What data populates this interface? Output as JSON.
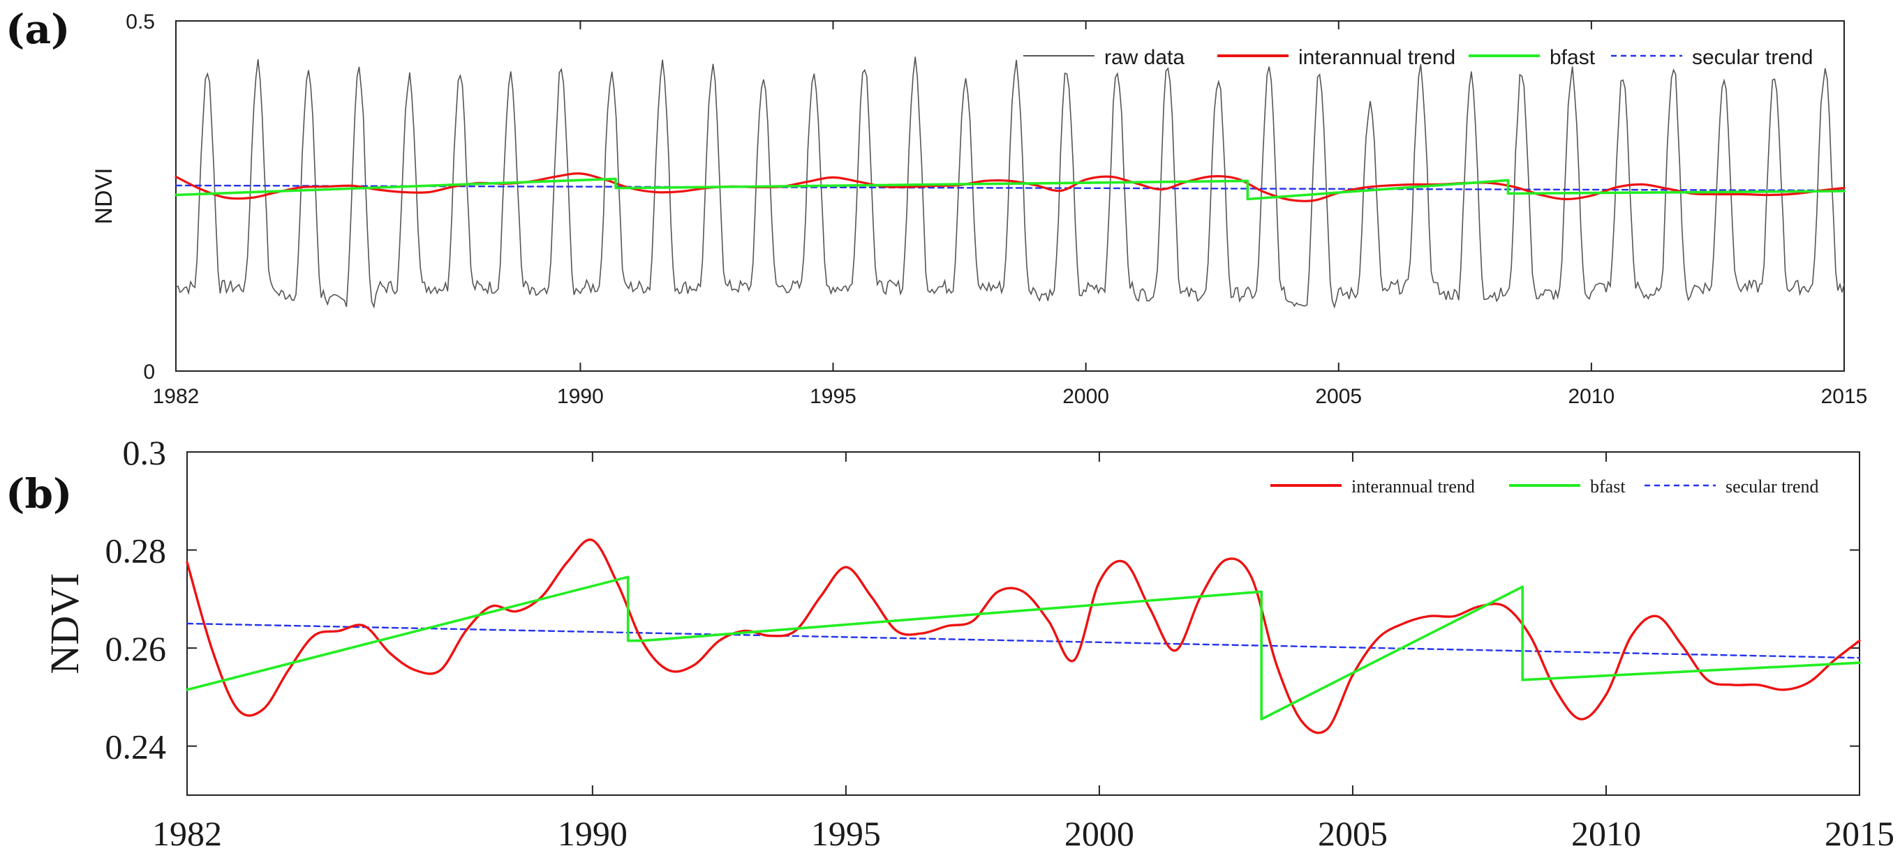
{
  "colors": {
    "raw": "#555555",
    "interannual": "#ee1111",
    "bfast": "#22ee22",
    "secular": "#2233ee",
    "axis": "#222222"
  },
  "chart_data": [
    {
      "panel_label": "(a)",
      "type": "line",
      "title": "",
      "xlabel": "",
      "ylabel": "NDVI",
      "xlim": [
        1982,
        2015
      ],
      "ylim": [
        0,
        0.5
      ],
      "x_ticks": [
        1982,
        1990,
        1995,
        2000,
        2005,
        2010,
        2015
      ],
      "x_tick_labels": [
        "1982",
        "1990",
        "1995",
        "2000",
        "2005",
        "2010",
        "2015"
      ],
      "y_ticks": [
        0,
        0.5
      ],
      "y_tick_labels": [
        "0",
        "0.5"
      ],
      "legend_position": "top-right",
      "legend": [
        "raw data",
        "interannual trend",
        "bfast",
        "secular trend"
      ],
      "raw_data": {
        "name": "raw data",
        "description": "seasonal NDVI, one cycle per year",
        "seasonal_peaks": [
          0.43,
          0.44,
          0.43,
          0.43,
          0.42,
          0.43,
          0.42,
          0.43,
          0.43,
          0.44,
          0.43,
          0.42,
          0.43,
          0.44,
          0.44,
          0.42,
          0.44,
          0.43,
          0.43,
          0.44,
          0.42,
          0.43,
          0.43,
          0.38,
          0.43,
          0.42,
          0.43,
          0.43,
          0.42,
          0.44,
          0.42,
          0.42,
          0.43
        ],
        "seasonal_troughs": [
          0.12,
          0.12,
          0.11,
          0.1,
          0.12,
          0.12,
          0.12,
          0.11,
          0.12,
          0.12,
          0.12,
          0.12,
          0.12,
          0.12,
          0.12,
          0.12,
          0.12,
          0.11,
          0.12,
          0.11,
          0.11,
          0.11,
          0.1,
          0.11,
          0.12,
          0.11,
          0.11,
          0.11,
          0.12,
          0.11,
          0.12,
          0.12,
          0.12
        ]
      },
      "series": [
        {
          "name": "interannual trend",
          "x": [
            1982.0,
            1982.5,
            1983.0,
            1983.5,
            1984.0,
            1984.5,
            1985.0,
            1985.5,
            1986.0,
            1986.5,
            1987.0,
            1987.5,
            1988.0,
            1988.5,
            1989.0,
            1989.5,
            1990.0,
            1990.5,
            1991.0,
            1991.5,
            1992.0,
            1992.5,
            1993.0,
            1993.5,
            1994.0,
            1994.5,
            1995.0,
            1995.5,
            1996.0,
            1996.5,
            1997.0,
            1997.5,
            1998.0,
            1998.5,
            1999.0,
            1999.5,
            2000.0,
            2000.5,
            2001.0,
            2001.5,
            2002.0,
            2002.5,
            2003.0,
            2003.5,
            2004.0,
            2004.5,
            2005.0,
            2005.5,
            2006.0,
            2006.5,
            2007.0,
            2007.5,
            2008.0,
            2008.5,
            2009.0,
            2009.5,
            2010.0,
            2010.5,
            2011.0,
            2011.5,
            2012.0,
            2012.5,
            2013.0,
            2013.5,
            2014.0,
            2014.5,
            2015.0
          ],
          "values": [
            0.2775,
            0.2595,
            0.2475,
            0.2475,
            0.2555,
            0.2625,
            0.2635,
            0.2645,
            0.259,
            0.2555,
            0.2555,
            0.2635,
            0.2685,
            0.2675,
            0.2705,
            0.2775,
            0.282,
            0.273,
            0.261,
            0.2555,
            0.2565,
            0.2615,
            0.2635,
            0.2625,
            0.2635,
            0.2705,
            0.2765,
            0.2705,
            0.2635,
            0.263,
            0.2645,
            0.2655,
            0.2715,
            0.2715,
            0.2655,
            0.2575,
            0.2735,
            0.2775,
            0.268,
            0.2595,
            0.2705,
            0.278,
            0.2745,
            0.2565,
            0.245,
            0.2435,
            0.2545,
            0.262,
            0.265,
            0.2665,
            0.2665,
            0.2685,
            0.2685,
            0.2625,
            0.2515,
            0.2455,
            0.2505,
            0.2625,
            0.2665,
            0.2605,
            0.2535,
            0.2525,
            0.2525,
            0.2515,
            0.253,
            0.2575,
            0.2615
          ]
        },
        {
          "name": "bfast",
          "x": [
            1982.0,
            1990.7,
            1990.7,
            1991.0,
            2003.2,
            2003.2,
            2008.35,
            2008.35,
            2015.0
          ],
          "values": [
            0.2515,
            0.2745,
            0.2615,
            0.2615,
            0.2715,
            0.2455,
            0.2725,
            0.2535,
            0.257
          ]
        },
        {
          "name": "secular trend",
          "x": [
            1982,
            2015
          ],
          "values": [
            0.265,
            0.258
          ]
        }
      ]
    },
    {
      "panel_label": "(b)",
      "type": "line",
      "title": "",
      "xlabel": "",
      "ylabel": "NDVI",
      "xlim": [
        1982,
        2015
      ],
      "ylim": [
        0.23,
        0.3
      ],
      "x_ticks": [
        1982,
        1990,
        1995,
        2000,
        2005,
        2010,
        2015
      ],
      "x_tick_labels": [
        "1982",
        "1990",
        "1995",
        "2000",
        "2005",
        "2010",
        "2015"
      ],
      "y_ticks": [
        0.24,
        0.26,
        0.28,
        0.3
      ],
      "y_tick_labels": [
        "0.24",
        "0.26",
        "0.28",
        "0.3"
      ],
      "legend_position": "top-right",
      "legend": [
        "interannual trend",
        "bfast",
        "secular trend"
      ],
      "series": [
        {
          "name": "interannual trend",
          "x": [
            1982.0,
            1982.5,
            1983.0,
            1983.5,
            1984.0,
            1984.5,
            1985.0,
            1985.5,
            1986.0,
            1986.5,
            1987.0,
            1987.5,
            1988.0,
            1988.5,
            1989.0,
            1989.5,
            1990.0,
            1990.5,
            1991.0,
            1991.5,
            1992.0,
            1992.5,
            1993.0,
            1993.5,
            1994.0,
            1994.5,
            1995.0,
            1995.5,
            1996.0,
            1996.5,
            1997.0,
            1997.5,
            1998.0,
            1998.5,
            1999.0,
            1999.5,
            2000.0,
            2000.5,
            2001.0,
            2001.5,
            2002.0,
            2002.5,
            2003.0,
            2003.5,
            2004.0,
            2004.5,
            2005.0,
            2005.5,
            2006.0,
            2006.5,
            2007.0,
            2007.5,
            2008.0,
            2008.5,
            2009.0,
            2009.5,
            2010.0,
            2010.5,
            2011.0,
            2011.5,
            2012.0,
            2012.5,
            2013.0,
            2013.5,
            2014.0,
            2014.5,
            2015.0
          ],
          "values": [
            0.2775,
            0.2595,
            0.2475,
            0.2475,
            0.2555,
            0.2625,
            0.2635,
            0.2645,
            0.259,
            0.2555,
            0.2555,
            0.2635,
            0.2685,
            0.2675,
            0.2705,
            0.2775,
            0.282,
            0.273,
            0.261,
            0.2555,
            0.2565,
            0.2615,
            0.2635,
            0.2625,
            0.2635,
            0.2705,
            0.2765,
            0.2705,
            0.2635,
            0.263,
            0.2645,
            0.2655,
            0.2715,
            0.2715,
            0.2655,
            0.2575,
            0.2735,
            0.2775,
            0.268,
            0.2595,
            0.2705,
            0.278,
            0.2745,
            0.2565,
            0.245,
            0.2435,
            0.2545,
            0.262,
            0.265,
            0.2665,
            0.2665,
            0.2685,
            0.2685,
            0.2625,
            0.2515,
            0.2455,
            0.2505,
            0.2625,
            0.2665,
            0.2605,
            0.2535,
            0.2525,
            0.2525,
            0.2515,
            0.253,
            0.2575,
            0.2615
          ]
        },
        {
          "name": "bfast",
          "x": [
            1982.0,
            1990.7,
            1990.7,
            1991.0,
            2003.2,
            2003.2,
            2008.35,
            2008.35,
            2015.0
          ],
          "values": [
            0.2515,
            0.2745,
            0.2615,
            0.2615,
            0.2715,
            0.2455,
            0.2725,
            0.2535,
            0.257
          ]
        },
        {
          "name": "secular trend",
          "x": [
            1982,
            2015
          ],
          "values": [
            0.265,
            0.258
          ]
        }
      ]
    }
  ]
}
